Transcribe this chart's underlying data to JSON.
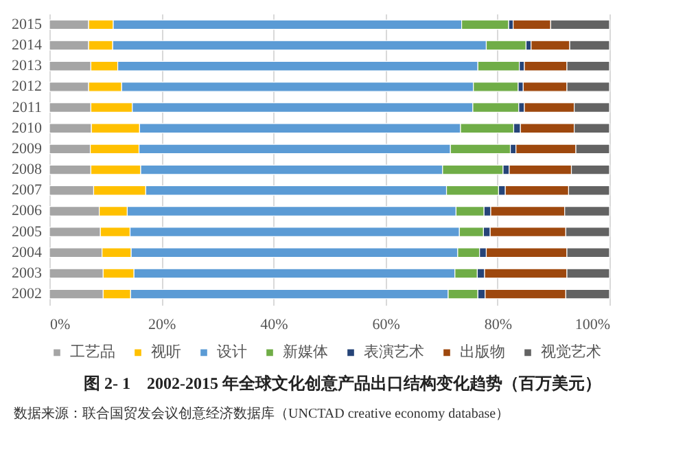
{
  "chart_data": {
    "type": "bar",
    "orientation": "horizontal",
    "stacked": true,
    "title": "图 2- 1　2002-2015 年全球文化创意产品出口结构变化趋势（百万美元）",
    "annotations": [
      "数据来源：联合国贸发会议创意经济数据库（UNCTAD creative economy database）"
    ],
    "categories": [
      "2015",
      "2014",
      "2013",
      "2012",
      "2011",
      "2010",
      "2009",
      "2008",
      "2007",
      "2006",
      "2005",
      "2004",
      "2003",
      "2002"
    ],
    "series": [
      {
        "name": "工艺品",
        "color": "#a5a5a5",
        "values": [
          7.0,
          7.0,
          7.4,
          7.0,
          7.4,
          7.5,
          7.3,
          7.4,
          7.9,
          8.9,
          9.1,
          9.4,
          9.6,
          9.6
        ]
      },
      {
        "name": "视听",
        "color": "#ffc000",
        "values": [
          4.4,
          4.3,
          4.8,
          5.9,
          7.4,
          8.6,
          8.7,
          8.9,
          9.3,
          5.0,
          5.3,
          5.2,
          5.5,
          4.9
        ]
      },
      {
        "name": "设计",
        "color": "#5b9bd5",
        "values": [
          62.2,
          66.7,
          64.3,
          62.8,
          60.8,
          57.3,
          55.6,
          53.9,
          53.7,
          58.7,
          58.8,
          58.3,
          57.3,
          56.7
        ]
      },
      {
        "name": "新媒体",
        "color": "#70ad47",
        "values": [
          8.4,
          7.1,
          7.4,
          8.0,
          8.2,
          9.5,
          10.7,
          10.8,
          9.3,
          5.0,
          4.3,
          3.9,
          4.0,
          5.3
        ]
      },
      {
        "name": "表演艺术",
        "color": "#264478",
        "values": [
          0.8,
          0.9,
          0.9,
          0.9,
          1.0,
          1.2,
          1.0,
          1.1,
          1.2,
          1.2,
          1.2,
          1.2,
          1.3,
          1.3
        ]
      },
      {
        "name": "出版物",
        "color": "#9e480e",
        "values": [
          6.7,
          6.9,
          7.6,
          7.8,
          8.9,
          9.6,
          10.7,
          11.1,
          11.3,
          13.2,
          13.5,
          14.4,
          14.7,
          14.4
        ]
      },
      {
        "name": "视觉艺术",
        "color": "#636363",
        "values": [
          10.5,
          7.1,
          7.6,
          7.6,
          6.3,
          6.3,
          6.0,
          6.8,
          7.3,
          8.0,
          7.8,
          7.6,
          7.6,
          7.8
        ]
      }
    ],
    "xlim": [
      0,
      100
    ],
    "xticks": [
      {
        "value": 0,
        "label": "0%"
      },
      {
        "value": 20,
        "label": "20%"
      },
      {
        "value": 40,
        "label": "40%"
      },
      {
        "value": 60,
        "label": "60%"
      },
      {
        "value": 80,
        "label": "80%"
      },
      {
        "value": 100,
        "label": "100%"
      }
    ],
    "grid": "x",
    "legend": "bottom"
  }
}
